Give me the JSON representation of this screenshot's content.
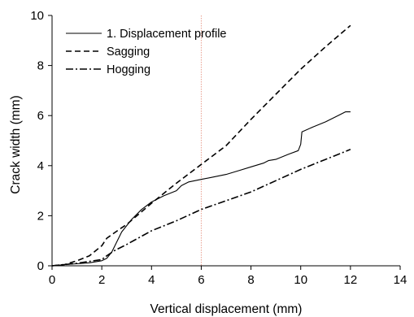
{
  "chart_data": {
    "type": "line",
    "title": "",
    "xlabel": "Vertical displacement (mm)",
    "ylabel": "Crack width (mm)",
    "xlim": [
      0,
      14
    ],
    "ylim": [
      0,
      10
    ],
    "x_ticks": [
      "0",
      "2",
      "4",
      "6",
      "8",
      "10",
      "12",
      "14"
    ],
    "y_ticks": [
      "0",
      "2",
      "4",
      "6",
      "8",
      "10"
    ],
    "grid": false,
    "legend_position": "top-left",
    "reference_line": {
      "x": 6,
      "color": "#e8a090"
    },
    "series": [
      {
        "name": "1. Displacement profile",
        "style": "solid",
        "color": "#000000",
        "points": [
          [
            0,
            0
          ],
          [
            0.5,
            0.05
          ],
          [
            1,
            0.08
          ],
          [
            1.5,
            0.12
          ],
          [
            2,
            0.2
          ],
          [
            2.2,
            0.3
          ],
          [
            2.4,
            0.55
          ],
          [
            2.6,
            0.95
          ],
          [
            2.8,
            1.35
          ],
          [
            3.2,
            1.85
          ],
          [
            3.6,
            2.25
          ],
          [
            4,
            2.55
          ],
          [
            4.5,
            2.8
          ],
          [
            5,
            3.0
          ],
          [
            5.2,
            3.2
          ],
          [
            5.5,
            3.35
          ],
          [
            6,
            3.45
          ],
          [
            6.5,
            3.55
          ],
          [
            7,
            3.65
          ],
          [
            7.5,
            3.8
          ],
          [
            8,
            3.95
          ],
          [
            8.5,
            4.1
          ],
          [
            8.7,
            4.2
          ],
          [
            9,
            4.25
          ],
          [
            9.5,
            4.45
          ],
          [
            9.9,
            4.6
          ],
          [
            10,
            4.85
          ],
          [
            10.05,
            5.35
          ],
          [
            10.5,
            5.55
          ],
          [
            11,
            5.75
          ],
          [
            11.5,
            6.0
          ],
          [
            11.8,
            6.15
          ],
          [
            12,
            6.15
          ]
        ]
      },
      {
        "name": "Sagging",
        "style": "dashed",
        "color": "#000000",
        "points": [
          [
            0,
            0
          ],
          [
            0.5,
            0.05
          ],
          [
            1,
            0.2
          ],
          [
            1.5,
            0.4
          ],
          [
            2,
            0.8
          ],
          [
            2.2,
            1.1
          ],
          [
            2.7,
            1.45
          ],
          [
            3,
            1.65
          ],
          [
            4,
            2.5
          ],
          [
            5,
            3.3
          ],
          [
            6,
            4.05
          ],
          [
            7,
            4.8
          ],
          [
            8,
            5.85
          ],
          [
            9,
            6.85
          ],
          [
            10,
            7.85
          ],
          [
            11,
            8.75
          ],
          [
            12,
            9.6
          ]
        ]
      },
      {
        "name": "Hogging",
        "style": "dashdot",
        "color": "#000000",
        "points": [
          [
            0,
            0
          ],
          [
            1,
            0.1
          ],
          [
            2,
            0.25
          ],
          [
            2.2,
            0.4
          ],
          [
            2.5,
            0.6
          ],
          [
            3,
            0.85
          ],
          [
            4,
            1.4
          ],
          [
            5,
            1.8
          ],
          [
            6,
            2.25
          ],
          [
            7,
            2.6
          ],
          [
            8,
            2.95
          ],
          [
            9,
            3.4
          ],
          [
            10,
            3.85
          ],
          [
            11,
            4.25
          ],
          [
            12,
            4.65
          ]
        ]
      }
    ]
  }
}
